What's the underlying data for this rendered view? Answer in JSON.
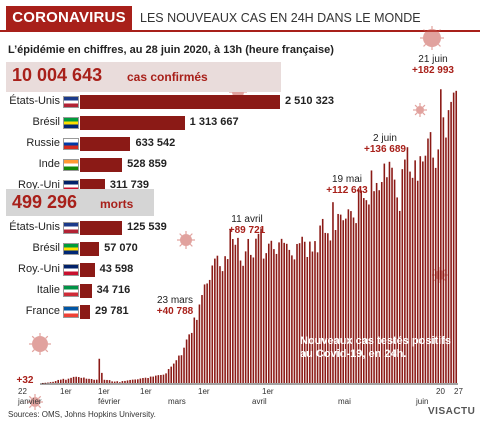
{
  "header": {
    "banner": "CORONAVIRUS",
    "title": "LES NOUVEAUX CAS EN 24H DANS LE MONDE"
  },
  "subtitle": "L’épidémie en chiffres, au 28 juin 2020, à 13h (heure française)",
  "confirmed": {
    "value": "10 004 643",
    "unit": "cas confirmés"
  },
  "deaths": {
    "value": "499 296",
    "unit": "morts"
  },
  "colors": {
    "accent": "#a8201a",
    "bar": "#8b1a16"
  },
  "cases_by_country": [
    {
      "country": "États-Unis",
      "value": "2 510 323",
      "num": 2510323
    },
    {
      "country": "Brésil",
      "value": "1 313 667",
      "num": 1313667
    },
    {
      "country": "Russie",
      "value": "633 542",
      "num": 633542
    },
    {
      "country": "Inde",
      "value": "528 859",
      "num": 528859
    },
    {
      "country": "Roy.-Uni",
      "value": "311 739",
      "num": 311739
    }
  ],
  "deaths_by_country": [
    {
      "country": "États-Unis",
      "value": "125 539",
      "num": 125539
    },
    {
      "country": "Brésil",
      "value": "57 070",
      "num": 57070
    },
    {
      "country": "Roy.-Uni",
      "value": "43 598",
      "num": 43598
    },
    {
      "country": "Italie",
      "value": "34 716",
      "num": 34716
    },
    {
      "country": "France",
      "value": "29 781",
      "num": 29781
    }
  ],
  "annotations": [
    {
      "date": "21 juin",
      "value": "+182 993"
    },
    {
      "date": "2 juin",
      "value": "+136 689"
    },
    {
      "date": "19 mai",
      "value": "+112 643"
    },
    {
      "date": "11 avril",
      "value": "+89 721"
    },
    {
      "date": "23 mars",
      "value": "+40 788"
    },
    {
      "date": "",
      "value": "+32"
    }
  ],
  "legend": "Nouveaux cas testés positifs au Covid-19, en 24h.",
  "source": "Sources: OMS, Johns Hopkins University.",
  "logo": "VISACTU",
  "chart_data": {
    "type": "bar",
    "title": "LES NOUVEAUX CAS EN 24H DANS LE MONDE",
    "x_start": "2020-01-22",
    "x_end": "2020-06-27",
    "tick_labels": [
      "22",
      "1er",
      "1er",
      "1er",
      "1er",
      "1er",
      "20",
      "27"
    ],
    "month_labels": [
      "janvier",
      "février",
      "mars",
      "avril",
      "mai",
      "juin"
    ],
    "ylim": [
      0,
      190000
    ],
    "values": [
      32,
      150,
      280,
      560,
      720,
      1200,
      1900,
      2100,
      2600,
      2000,
      2700,
      3200,
      3800,
      3900,
      3700,
      3200,
      3400,
      2700,
      2600,
      2500,
      2000,
      2100,
      15100,
      6300,
      2000,
      1900,
      1800,
      1000,
      900,
      1100,
      500,
      1200,
      1300,
      1600,
      1900,
      2100,
      2200,
      2300,
      2800,
      3100,
      3300,
      3100,
      4000,
      4000,
      4600,
      4900,
      5000,
      5200,
      6000,
      8700,
      10200,
      12100,
      14200,
      17100,
      17300,
      22000,
      27100,
      30300,
      31200,
      40788,
      39300,
      48900,
      54800,
      61400,
      62000,
      64200,
      73200,
      77500,
      79300,
      72800,
      69700,
      79000,
      77200,
      96000,
      89700,
      86100,
      90400,
      76300,
      73000,
      82000,
      89721,
      79800,
      78200,
      89900,
      92900,
      96300,
      77500,
      80900,
      86800,
      88600,
      83400,
      80400,
      87600,
      89800,
      87300,
      86700,
      82900,
      79500,
      77000,
      86600,
      87100,
      91100,
      88000,
      78500,
      88100,
      81900,
      88400,
      81400,
      98100,
      102200,
      93500,
      93300,
      88800,
      112643,
      95300,
      105300,
      104900,
      101400,
      102400,
      108200,
      107100,
      103100,
      99600,
      121000,
      119800,
      115200,
      113900,
      111200,
      132400,
      119500,
      124600,
      120100,
      125200,
      136689,
      128200,
      137800,
      134100,
      126700,
      115600,
      107200,
      133200,
      139200,
      146900,
      131700,
      127800,
      138700,
      126000,
      141300,
      138000,
      141600,
      152300,
      156300,
      140400,
      134000,
      145500,
      182993,
      165500,
      152900,
      170000,
      175100,
      180900,
      182000
    ]
  }
}
